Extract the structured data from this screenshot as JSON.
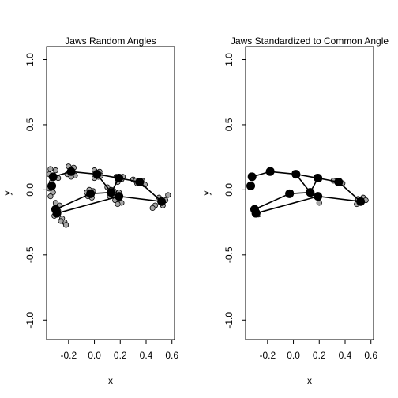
{
  "chart_data": [
    {
      "type": "scatter",
      "title": "Jaws Random Angles",
      "xlabel": "x",
      "ylabel": "y",
      "xlim": [
        -0.37,
        0.62
      ],
      "ylim": [
        -1.15,
        1.1
      ],
      "xticks": [
        "-0.2",
        "0.0",
        "0.2",
        "0.4",
        "0.6"
      ],
      "yticks": [
        "-1.0",
        "-0.5",
        "0.0",
        "0.5",
        "1.0"
      ],
      "grid": false,
      "mean_shape": {
        "points": [
          [
            -0.32,
            0.1
          ],
          [
            -0.33,
            0.03
          ],
          [
            -0.3,
            -0.15
          ],
          [
            -0.29,
            -0.18
          ],
          [
            -0.18,
            0.14
          ],
          [
            0.02,
            0.12
          ],
          [
            0.19,
            0.09
          ],
          [
            0.35,
            0.06
          ],
          [
            0.52,
            -0.09
          ],
          [
            0.19,
            -0.05
          ],
          [
            0.13,
            -0.02
          ],
          [
            -0.03,
            -0.03
          ]
        ],
        "edges": [
          [
            0,
            4
          ],
          [
            4,
            5
          ],
          [
            5,
            6
          ],
          [
            6,
            7
          ],
          [
            7,
            8
          ],
          [
            8,
            9
          ],
          [
            9,
            3
          ],
          [
            3,
            2
          ],
          [
            2,
            11
          ],
          [
            11,
            10
          ],
          [
            10,
            6
          ],
          [
            5,
            10
          ]
        ]
      },
      "samples": [
        [
          -0.34,
          0.16
        ],
        [
          -0.3,
          0.15
        ],
        [
          -0.35,
          0.12
        ],
        [
          -0.28,
          0.09
        ],
        [
          -0.33,
          0.06
        ],
        [
          -0.35,
          0.01
        ],
        [
          -0.32,
          -0.02
        ],
        [
          -0.34,
          -0.05
        ],
        [
          -0.3,
          -0.1
        ],
        [
          -0.27,
          -0.12
        ],
        [
          -0.31,
          -0.2
        ],
        [
          -0.25,
          -0.22
        ],
        [
          -0.23,
          -0.25
        ],
        [
          -0.22,
          -0.27
        ],
        [
          -0.26,
          -0.24
        ],
        [
          -0.28,
          -0.16
        ],
        [
          -0.2,
          0.18
        ],
        [
          -0.16,
          0.17
        ],
        [
          -0.21,
          0.12
        ],
        [
          -0.15,
          0.11
        ],
        [
          -0.18,
          0.1
        ],
        [
          0.0,
          0.15
        ],
        [
          0.04,
          0.14
        ],
        [
          0.03,
          0.1
        ],
        [
          0.0,
          0.09
        ],
        [
          0.05,
          0.11
        ],
        [
          0.17,
          0.1
        ],
        [
          0.21,
          0.08
        ],
        [
          0.18,
          0.06
        ],
        [
          0.22,
          0.1
        ],
        [
          0.3,
          0.08
        ],
        [
          0.33,
          0.05
        ],
        [
          0.37,
          0.07
        ],
        [
          0.39,
          0.04
        ],
        [
          0.32,
          0.07
        ],
        [
          0.5,
          -0.06
        ],
        [
          0.55,
          -0.08
        ],
        [
          0.57,
          -0.04
        ],
        [
          0.47,
          -0.12
        ],
        [
          0.45,
          -0.14
        ],
        [
          0.53,
          -0.12
        ],
        [
          0.19,
          -0.02
        ],
        [
          0.16,
          -0.08
        ],
        [
          0.21,
          -0.1
        ],
        [
          0.18,
          -0.11
        ],
        [
          0.2,
          -0.05
        ],
        [
          0.1,
          0.02
        ],
        [
          0.12,
          -0.05
        ],
        [
          0.15,
          -0.01
        ],
        [
          0.13,
          0.0
        ],
        [
          0.14,
          -0.04
        ],
        [
          -0.06,
          -0.02
        ],
        [
          -0.02,
          -0.06
        ],
        [
          -0.05,
          -0.05
        ],
        [
          -0.01,
          -0.01
        ],
        [
          -0.04,
          0.0
        ]
      ]
    },
    {
      "type": "scatter",
      "title": "Jaws Standardized to Common Angle",
      "xlabel": "x",
      "ylabel": "y",
      "xlim": [
        -0.37,
        0.62
      ],
      "ylim": [
        -1.15,
        1.1
      ],
      "xticks": [
        "-0.2",
        "0.0",
        "0.2",
        "0.4",
        "0.6"
      ],
      "yticks": [
        "-1.0",
        "-0.5",
        "0.0",
        "0.5",
        "1.0"
      ],
      "grid": false,
      "mean_shape": {
        "points": [
          [
            -0.32,
            0.1
          ],
          [
            -0.33,
            0.03
          ],
          [
            -0.3,
            -0.15
          ],
          [
            -0.29,
            -0.18
          ],
          [
            -0.18,
            0.14
          ],
          [
            0.02,
            0.12
          ],
          [
            0.19,
            0.09
          ],
          [
            0.35,
            0.06
          ],
          [
            0.52,
            -0.09
          ],
          [
            0.19,
            -0.05
          ],
          [
            0.13,
            -0.02
          ],
          [
            -0.03,
            -0.03
          ]
        ],
        "edges": [
          [
            0,
            4
          ],
          [
            4,
            5
          ],
          [
            5,
            6
          ],
          [
            6,
            7
          ],
          [
            7,
            8
          ],
          [
            8,
            9
          ],
          [
            9,
            3
          ],
          [
            3,
            2
          ],
          [
            2,
            11
          ],
          [
            11,
            10
          ],
          [
            10,
            6
          ],
          [
            5,
            10
          ]
        ]
      },
      "samples": [
        [
          -0.33,
          0.11
        ],
        [
          -0.31,
          0.1
        ],
        [
          -0.3,
          -0.16
        ],
        [
          -0.28,
          -0.17
        ],
        [
          -0.27,
          -0.19
        ],
        [
          -0.19,
          0.14
        ],
        [
          -0.17,
          0.15
        ],
        [
          0.01,
          0.13
        ],
        [
          0.03,
          0.11
        ],
        [
          0.18,
          0.1
        ],
        [
          0.2,
          0.08
        ],
        [
          0.19,
          -0.06
        ],
        [
          0.2,
          -0.1
        ],
        [
          0.31,
          0.07
        ],
        [
          0.34,
          0.06
        ],
        [
          0.38,
          0.05
        ],
        [
          0.5,
          -0.07
        ],
        [
          0.54,
          -0.06
        ],
        [
          0.56,
          -0.08
        ],
        [
          0.49,
          -0.11
        ],
        [
          0.12,
          -0.02
        ],
        [
          0.14,
          -0.03
        ],
        [
          -0.04,
          -0.03
        ],
        [
          -0.02,
          -0.02
        ]
      ]
    }
  ]
}
